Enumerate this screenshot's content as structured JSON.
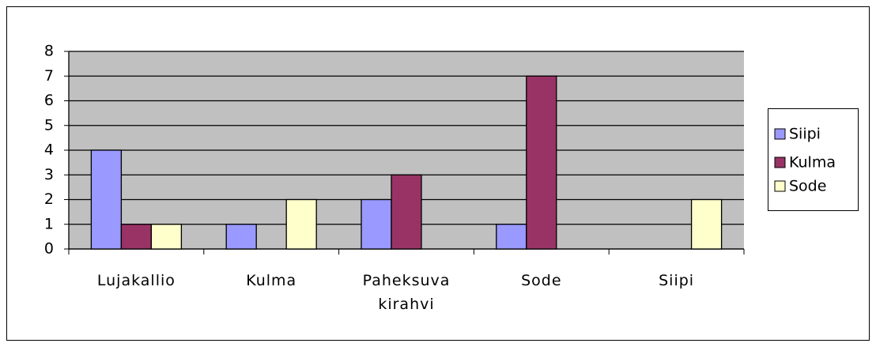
{
  "chart_data": {
    "type": "bar",
    "categories": [
      "Lujakallio",
      "Kulma",
      "Paheksuva kirahvi",
      "Sode",
      "Siipi"
    ],
    "series": [
      {
        "name": "Siipi",
        "color": "#9999ff",
        "values": [
          4,
          1,
          2,
          1,
          0
        ]
      },
      {
        "name": "Kulma",
        "color": "#993366",
        "values": [
          1,
          0,
          3,
          7,
          0
        ]
      },
      {
        "name": "Sode",
        "color": "#ffffcc",
        "values": [
          1,
          2,
          0,
          0,
          2
        ]
      }
    ],
    "ylim": [
      0,
      8
    ],
    "yticks": [
      0,
      1,
      2,
      3,
      4,
      5,
      6,
      7,
      8
    ],
    "grid": true,
    "legend": "right"
  }
}
